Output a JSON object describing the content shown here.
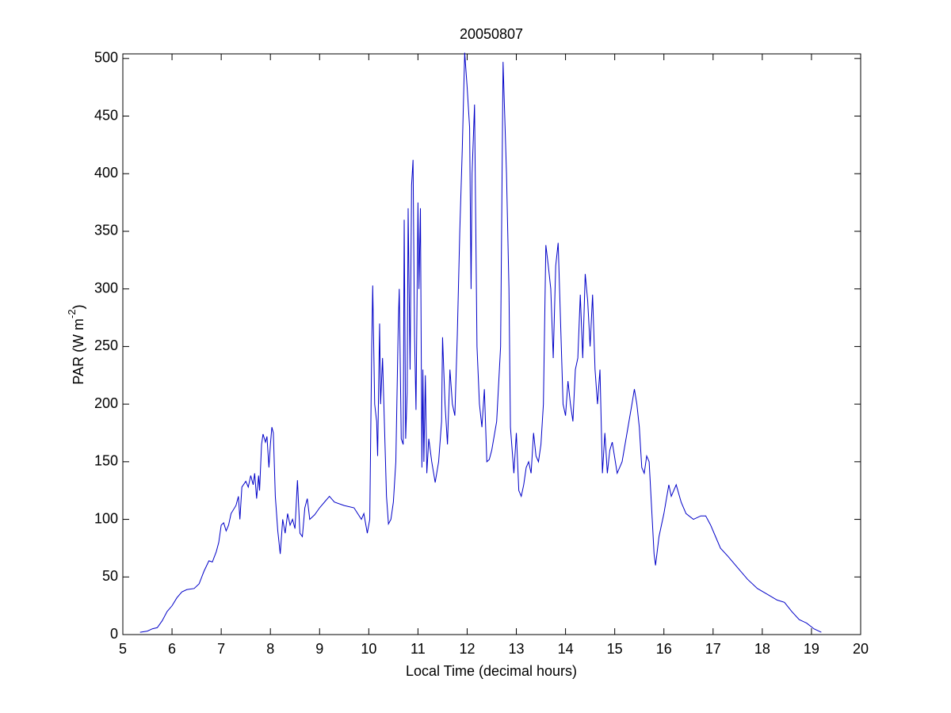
{
  "chart_data": {
    "type": "line",
    "title": "20050807",
    "xlabel": "Local Time (decimal hours)",
    "ylabel": {
      "text": "PAR (W m",
      "superscript": "-2",
      "suffix": ")"
    },
    "color": "#0000c8",
    "xlim": [
      5,
      20
    ],
    "xticks": [
      5,
      6,
      7,
      8,
      9,
      10,
      11,
      12,
      13,
      14,
      15,
      16,
      17,
      18,
      19,
      20
    ],
    "ylim": [
      0,
      504
    ],
    "yticks": [
      0,
      50,
      100,
      150,
      200,
      250,
      300,
      350,
      400,
      450,
      500
    ],
    "x": [
      5.35,
      5.5,
      5.6,
      5.7,
      5.8,
      5.9,
      6.0,
      6.1,
      6.2,
      6.3,
      6.45,
      6.55,
      6.65,
      6.75,
      6.82,
      6.9,
      6.95,
      7.0,
      7.05,
      7.1,
      7.15,
      7.2,
      7.3,
      7.35,
      7.38,
      7.42,
      7.5,
      7.55,
      7.6,
      7.65,
      7.68,
      7.72,
      7.76,
      7.78,
      7.82,
      7.85,
      7.9,
      7.93,
      7.97,
      8.0,
      8.03,
      8.06,
      8.1,
      8.15,
      8.2,
      8.25,
      8.3,
      8.35,
      8.4,
      8.45,
      8.5,
      8.55,
      8.6,
      8.65,
      8.7,
      8.75,
      8.8,
      8.9,
      9.0,
      9.1,
      9.2,
      9.3,
      9.5,
      9.7,
      9.85,
      9.9,
      9.97,
      10.02,
      10.06,
      10.08,
      10.12,
      10.16,
      10.18,
      10.22,
      10.24,
      10.28,
      10.32,
      10.36,
      10.4,
      10.45,
      10.5,
      10.55,
      10.6,
      10.62,
      10.66,
      10.7,
      10.72,
      10.75,
      10.78,
      10.8,
      10.84,
      10.87,
      10.9,
      10.93,
      10.96,
      11.0,
      11.02,
      11.05,
      11.08,
      11.1,
      11.12,
      11.15,
      11.18,
      11.22,
      11.28,
      11.35,
      11.42,
      11.48,
      11.5,
      11.55,
      11.6,
      11.65,
      11.7,
      11.75,
      11.8,
      11.85,
      11.9,
      11.95,
      12.0,
      12.05,
      12.08,
      12.1,
      12.15,
      12.2,
      12.25,
      12.3,
      12.35,
      12.4,
      12.45,
      12.5,
      12.6,
      12.68,
      12.73,
      12.8,
      12.85,
      12.88,
      12.95,
      13.0,
      13.05,
      13.1,
      13.15,
      13.2,
      13.25,
      13.3,
      13.35,
      13.4,
      13.45,
      13.5,
      13.55,
      13.6,
      13.65,
      13.7,
      13.75,
      13.8,
      13.85,
      13.9,
      13.95,
      14.0,
      14.05,
      14.1,
      14.15,
      14.2,
      14.25,
      14.3,
      14.35,
      14.4,
      14.45,
      14.5,
      14.55,
      14.6,
      14.65,
      14.7,
      14.75,
      14.8,
      14.85,
      14.9,
      14.95,
      15.05,
      15.15,
      15.25,
      15.35,
      15.4,
      15.45,
      15.5,
      15.55,
      15.6,
      15.65,
      15.7,
      15.75,
      15.8,
      15.83,
      15.9,
      16.0,
      16.1,
      16.15,
      16.25,
      16.35,
      16.45,
      16.6,
      16.75,
      16.85,
      16.95,
      17.05,
      17.15,
      17.3,
      17.5,
      17.7,
      17.9,
      18.1,
      18.3,
      18.45,
      18.6,
      18.75,
      18.9,
      19.05,
      19.2
    ],
    "values": [
      2,
      3,
      5,
      6,
      12,
      20,
      25,
      32,
      37,
      39,
      40,
      44,
      55,
      64,
      63,
      72,
      80,
      95,
      97,
      90,
      95,
      105,
      112,
      120,
      100,
      128,
      133,
      128,
      138,
      130,
      140,
      118,
      138,
      125,
      165,
      174,
      167,
      172,
      145,
      165,
      180,
      175,
      120,
      90,
      70,
      100,
      88,
      105,
      95,
      100,
      92,
      134,
      88,
      85,
      110,
      118,
      100,
      104,
      110,
      115,
      120,
      115,
      112,
      110,
      100,
      105,
      88,
      100,
      250,
      303,
      200,
      185,
      155,
      270,
      200,
      240,
      180,
      120,
      96,
      100,
      115,
      150,
      270,
      300,
      170,
      165,
      360,
      170,
      210,
      370,
      230,
      390,
      412,
      260,
      195,
      375,
      300,
      370,
      145,
      230,
      150,
      225,
      140,
      170,
      150,
      132,
      150,
      185,
      258,
      200,
      165,
      230,
      200,
      190,
      260,
      350,
      420,
      505,
      475,
      440,
      300,
      400,
      460,
      250,
      200,
      180,
      213,
      150,
      152,
      160,
      185,
      250,
      497,
      400,
      300,
      180,
      140,
      175,
      125,
      120,
      130,
      145,
      150,
      140,
      175,
      155,
      150,
      165,
      200,
      338,
      320,
      300,
      240,
      320,
      340,
      270,
      200,
      190,
      220,
      200,
      185,
      230,
      240,
      295,
      240,
      313,
      290,
      250,
      295,
      230,
      200,
      230,
      140,
      175,
      140,
      160,
      167,
      140,
      150,
      175,
      200,
      213,
      200,
      180,
      145,
      140,
      155,
      150,
      110,
      70,
      60,
      85,
      105,
      130,
      120,
      130,
      115,
      105,
      100,
      103,
      103,
      95,
      85,
      75,
      68,
      58,
      48,
      40,
      35,
      30,
      28,
      20,
      13,
      10,
      5,
      2
    ]
  }
}
